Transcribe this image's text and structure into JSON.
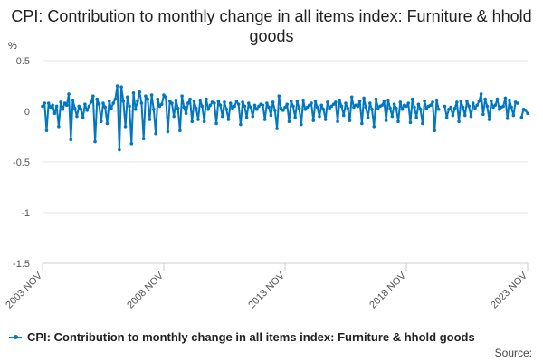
{
  "chart_data": {
    "type": "line",
    "title": "CPI: Contribution to monthly change in all items index: Furniture & hhold goods",
    "ylabel": "%",
    "ylim": [
      -1.5,
      0.5
    ],
    "yticks": [
      "0.5",
      "0",
      "-0.5",
      "-1",
      "-1.5"
    ],
    "ytick_values": [
      0.5,
      0,
      -0.5,
      -1,
      -1.5
    ],
    "x_start": "2003 NOV",
    "x_end": "2023 NOV",
    "xticks": [
      "2003 NOV",
      "2008 NOV",
      "2013 NOV",
      "2018 NOV",
      "2023 NOV"
    ],
    "grid": true,
    "legend_position": "bottom",
    "color": "#0077c0",
    "series": [
      {
        "name": "CPI: Contribution to monthly change in all items index: Furniture & hhold goods",
        "values": [
          0.05,
          0.08,
          -0.19,
          0.08,
          0.04,
          0.06,
          -0.02,
          0.05,
          -0.15,
          0.09,
          0.02,
          0.08,
          0.06,
          0.17,
          -0.28,
          0.11,
          0.03,
          -0.05,
          0.05,
          0.02,
          -0.06,
          0.07,
          0.01,
          0.05,
          0.09,
          0.15,
          -0.3,
          0.12,
          0.07,
          -0.1,
          0.08,
          0.04,
          -0.12,
          0.1,
          0.03,
          0.08,
          0.12,
          0.25,
          -0.38,
          0.24,
          0.1,
          -0.15,
          0.14,
          0.05,
          -0.32,
          0.18,
          0.02,
          0.1,
          0.19,
          0.08,
          -0.27,
          0.15,
          0.12,
          -0.08,
          0.16,
          0.02,
          -0.22,
          0.12,
          0.05,
          0.07,
          0.16,
          0.14,
          -0.2,
          0.1,
          0.08,
          -0.05,
          0.11,
          0.03,
          -0.19,
          0.15,
          0.04,
          -0.02,
          0.08,
          0.12,
          -0.1,
          0.1,
          0.03,
          -0.08,
          0.11,
          0.05,
          -0.1,
          0.12,
          0.02,
          0.06,
          0.09,
          0.08,
          -0.12,
          0.1,
          0.06,
          -0.05,
          0.09,
          0.02,
          -0.08,
          0.08,
          0.03,
          0.05,
          0.1,
          0.07,
          -0.13,
          0.09,
          0.05,
          -0.06,
          0.08,
          0.04,
          -0.05,
          0.06,
          0.02,
          0.05,
          0.07,
          0.06,
          -0.08,
          0.08,
          0.04,
          -0.04,
          0.09,
          0.01,
          -0.17,
          0.15,
          0.03,
          0.01,
          0.04,
          0.07,
          -0.1,
          0.1,
          0.05,
          -0.06,
          0.1,
          0.03,
          -0.13,
          0.11,
          0.02,
          0.04,
          0.06,
          0.08,
          -0.09,
          0.1,
          0.04,
          -0.05,
          0.06,
          0.02,
          -0.08,
          0.09,
          0.03,
          0.05,
          0.07,
          0.09,
          -0.1,
          0.11,
          0.05,
          -0.04,
          0.08,
          0.03,
          -0.09,
          0.14,
          0.04,
          0.06,
          0.05,
          0.1,
          -0.12,
          0.13,
          0.04,
          -0.06,
          0.08,
          0.02,
          -0.15,
          0.12,
          0.03,
          0.05,
          0.06,
          0.1,
          -0.09,
          0.11,
          0.03,
          -0.05,
          0.07,
          0.03,
          -0.1,
          0.09,
          0.02,
          0.06,
          0.05,
          0.08,
          -0.11,
          0.12,
          0.04,
          -0.06,
          0.07,
          0.02,
          -0.12,
          0.1,
          0.03,
          0.05,
          0.06,
          0.09,
          -0.19,
          0.11,
          0.02,
          null,
          null,
          0.05,
          -0.06,
          0.02,
          0.04,
          -0.04,
          0.03,
          0.09,
          -0.1,
          0.1,
          0.04,
          -0.04,
          0.1,
          0.05,
          -0.05,
          0.08,
          0.03,
          0.06,
          0.1,
          0.17,
          -0.03,
          0.12,
          0.05,
          -0.08,
          0.1,
          0.04,
          0.06,
          0.12,
          0.02,
          0.04,
          0.05,
          0.13,
          -0.07,
          0.11,
          0.04,
          -0.04,
          0.09,
          0.08,
          null,
          -0.06,
          0.02,
          0.01,
          -0.02
        ]
      }
    ]
  },
  "legend": {
    "label": "CPI: Contribution to monthly change in all items index: Furniture & hhold goods"
  },
  "source": "Source:"
}
